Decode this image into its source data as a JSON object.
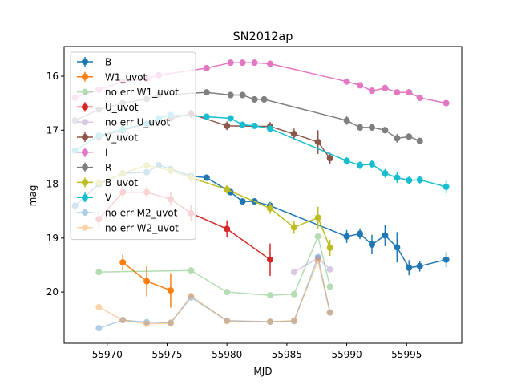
{
  "chart_data": {
    "type": "line",
    "title": "SN2012ap",
    "xlabel": "MJD",
    "ylabel": "mag",
    "xlim": [
      55966.4,
      55999.6
    ],
    "ylim": [
      20.95,
      15.45
    ],
    "y_inverted": true,
    "grid": false,
    "legend_position": "upper-left",
    "x_ticks": [
      55970,
      55975,
      55980,
      55985,
      55990,
      55995
    ],
    "y_ticks": [
      16,
      17,
      18,
      19,
      20
    ],
    "series": [
      {
        "name": "B",
        "color": "#1f77b4",
        "alpha": 1,
        "errorbars": true,
        "x": [
          55967.3,
          55969.3,
          55971.3,
          55973.3,
          55974.3,
          55975.3,
          55977.0,
          55978.3,
          55980.3,
          55981.3,
          55982.3,
          55983.6,
          55990.0,
          55991.1,
          55992.1,
          55993.2,
          55994.2,
          55995.2,
          55996.1,
          55998.3
        ],
        "y": [
          18.4,
          18.0,
          17.8,
          17.78,
          17.65,
          17.72,
          17.85,
          17.88,
          18.15,
          18.32,
          18.32,
          18.4,
          18.97,
          18.92,
          19.12,
          18.95,
          19.17,
          19.55,
          19.52,
          19.4
        ],
        "yerr": [
          0.08,
          0.06,
          0.06,
          0.05,
          0.05,
          0.05,
          0.05,
          0.05,
          0.06,
          0.06,
          0.06,
          0.07,
          0.12,
          0.1,
          0.18,
          0.2,
          0.28,
          0.14,
          0.1,
          0.14
        ]
      },
      {
        "name": "W1_uvot",
        "color": "#ff7f0e",
        "alpha": 1,
        "errorbars": true,
        "x": [
          55971.3,
          55973.3,
          55975.3
        ],
        "y": [
          19.45,
          19.8,
          19.97
        ],
        "yerr": [
          0.15,
          0.28,
          0.32
        ]
      },
      {
        "name": "no err W1_uvot",
        "color": "#2ca02c",
        "alpha": 0.35,
        "errorbars": false,
        "x": [
          55969.3,
          55977.0,
          55980.0,
          55983.6,
          55985.6,
          55987.6,
          55988.6
        ],
        "y": [
          19.63,
          19.6,
          20.0,
          20.06,
          20.04,
          18.97,
          19.9
        ]
      },
      {
        "name": "U_uvot",
        "color": "#d62728",
        "alpha": 1,
        "errorbars": true,
        "x": [
          55969.3,
          55971.3,
          55973.3,
          55975.3,
          55977.0,
          55980.0,
          55983.6
        ],
        "y": [
          18.65,
          18.15,
          18.15,
          18.28,
          18.54,
          18.83,
          19.4
        ],
        "yerr": [
          0.15,
          0.12,
          0.12,
          0.12,
          0.15,
          0.16,
          0.3
        ]
      },
      {
        "name": "no err U_uvot",
        "color": "#9467bd",
        "alpha": 0.35,
        "errorbars": false,
        "x": [
          55985.6,
          55987.6,
          55988.6
        ],
        "y": [
          19.63,
          19.37,
          19.58
        ]
      },
      {
        "name": "V_uvot",
        "color": "#8c564b",
        "alpha": 1,
        "errorbars": true,
        "x": [
          55969.3,
          55971.3,
          55973.3,
          55975.3,
          55977.0,
          55980.0,
          55983.6,
          55985.6,
          55987.6,
          55988.6
        ],
        "y": [
          17.12,
          17.0,
          16.88,
          16.78,
          16.7,
          16.92,
          16.93,
          17.07,
          17.22,
          17.52
        ],
        "yerr": [
          0.08,
          0.07,
          0.06,
          0.06,
          0.08,
          0.08,
          0.08,
          0.1,
          0.22,
          0.1
        ]
      },
      {
        "name": "I",
        "color": "#e377c2",
        "alpha": 1,
        "errorbars": true,
        "x": [
          55967.3,
          55969.3,
          55971.3,
          55973.3,
          55974.3,
          55978.3,
          55980.3,
          55981.3,
          55982.3,
          55983.6,
          55990.0,
          55991.1,
          55992.1,
          55993.2,
          55994.2,
          55995.2,
          55996.1,
          55998.3
        ],
        "y": [
          16.4,
          16.25,
          16.1,
          16.05,
          15.98,
          15.85,
          15.75,
          15.75,
          15.75,
          15.77,
          16.1,
          16.17,
          16.27,
          16.22,
          16.3,
          16.3,
          16.4,
          16.5
        ],
        "yerr": [
          0.04,
          0.04,
          0.04,
          0.04,
          0.04,
          0.04,
          0.04,
          0.04,
          0.04,
          0.04,
          0.05,
          0.05,
          0.05,
          0.05,
          0.05,
          0.05,
          0.05,
          0.05
        ]
      },
      {
        "name": "R",
        "color": "#7f7f7f",
        "alpha": 1,
        "errorbars": true,
        "x": [
          55967.3,
          55969.3,
          55971.3,
          55973.3,
          55974.3,
          55978.3,
          55980.3,
          55981.3,
          55982.3,
          55983.1,
          55990.0,
          55991.1,
          55992.1,
          55993.2,
          55994.2,
          55995.2,
          55996.1
        ],
        "y": [
          16.82,
          16.62,
          16.5,
          16.42,
          16.35,
          16.3,
          16.35,
          16.35,
          16.43,
          16.43,
          16.82,
          16.95,
          16.95,
          17.0,
          17.15,
          17.12,
          17.2
        ],
        "yerr": [
          0.05,
          0.05,
          0.05,
          0.05,
          0.05,
          0.05,
          0.05,
          0.05,
          0.05,
          0.05,
          0.08,
          0.06,
          0.06,
          0.06,
          0.08,
          0.06,
          0.06
        ]
      },
      {
        "name": "B_uvot",
        "color": "#bcbd22",
        "alpha": 1,
        "errorbars": true,
        "x": [
          55969.3,
          55971.3,
          55973.3,
          55975.3,
          55977.0,
          55980.0,
          55983.6,
          55985.6,
          55987.6,
          55988.6
        ],
        "y": [
          17.98,
          17.8,
          17.65,
          17.75,
          17.88,
          18.1,
          18.45,
          18.8,
          18.62,
          19.18
        ],
        "yerr": [
          0.08,
          0.07,
          0.07,
          0.07,
          0.08,
          0.08,
          0.1,
          0.12,
          0.2,
          0.15
        ]
      },
      {
        "name": "V",
        "color": "#17becf",
        "alpha": 1,
        "errorbars": true,
        "x": [
          55967.3,
          55969.3,
          55971.3,
          55973.3,
          55974.3,
          55975.3,
          55978.3,
          55980.3,
          55981.3,
          55982.3,
          55983.6,
          55990.0,
          55991.1,
          55992.1,
          55993.2,
          55994.2,
          55995.2,
          55996.1,
          55998.3
        ],
        "y": [
          17.38,
          17.1,
          16.98,
          16.88,
          16.78,
          16.72,
          16.75,
          16.78,
          16.9,
          16.92,
          16.97,
          17.57,
          17.65,
          17.63,
          17.8,
          17.88,
          17.93,
          17.92,
          18.05
        ],
        "yerr": [
          0.05,
          0.05,
          0.05,
          0.05,
          0.05,
          0.05,
          0.05,
          0.05,
          0.05,
          0.05,
          0.05,
          0.07,
          0.07,
          0.07,
          0.08,
          0.1,
          0.07,
          0.07,
          0.12
        ]
      },
      {
        "name": "no err M2_uvot",
        "color": "#1f77b4",
        "alpha": 0.35,
        "errorbars": false,
        "x": [
          55969.3,
          55971.3,
          55973.3,
          55975.3,
          55977.0,
          55980.0,
          55983.6,
          55985.6,
          55987.6,
          55988.6
        ],
        "y": [
          20.67,
          20.52,
          20.56,
          20.57,
          20.1,
          20.53,
          20.55,
          20.54,
          19.35,
          20.38
        ]
      },
      {
        "name": "no err W2_uvot",
        "color": "#ff7f0e",
        "alpha": 0.35,
        "errorbars": false,
        "x": [
          55969.3,
          55971.3,
          55973.3,
          55975.3,
          55977.0,
          55980.0,
          55983.6,
          55985.6,
          55987.6,
          55988.6
        ],
        "y": [
          20.28,
          20.52,
          20.59,
          20.58,
          20.07,
          20.54,
          20.55,
          20.53,
          19.42,
          20.38
        ]
      }
    ]
  }
}
